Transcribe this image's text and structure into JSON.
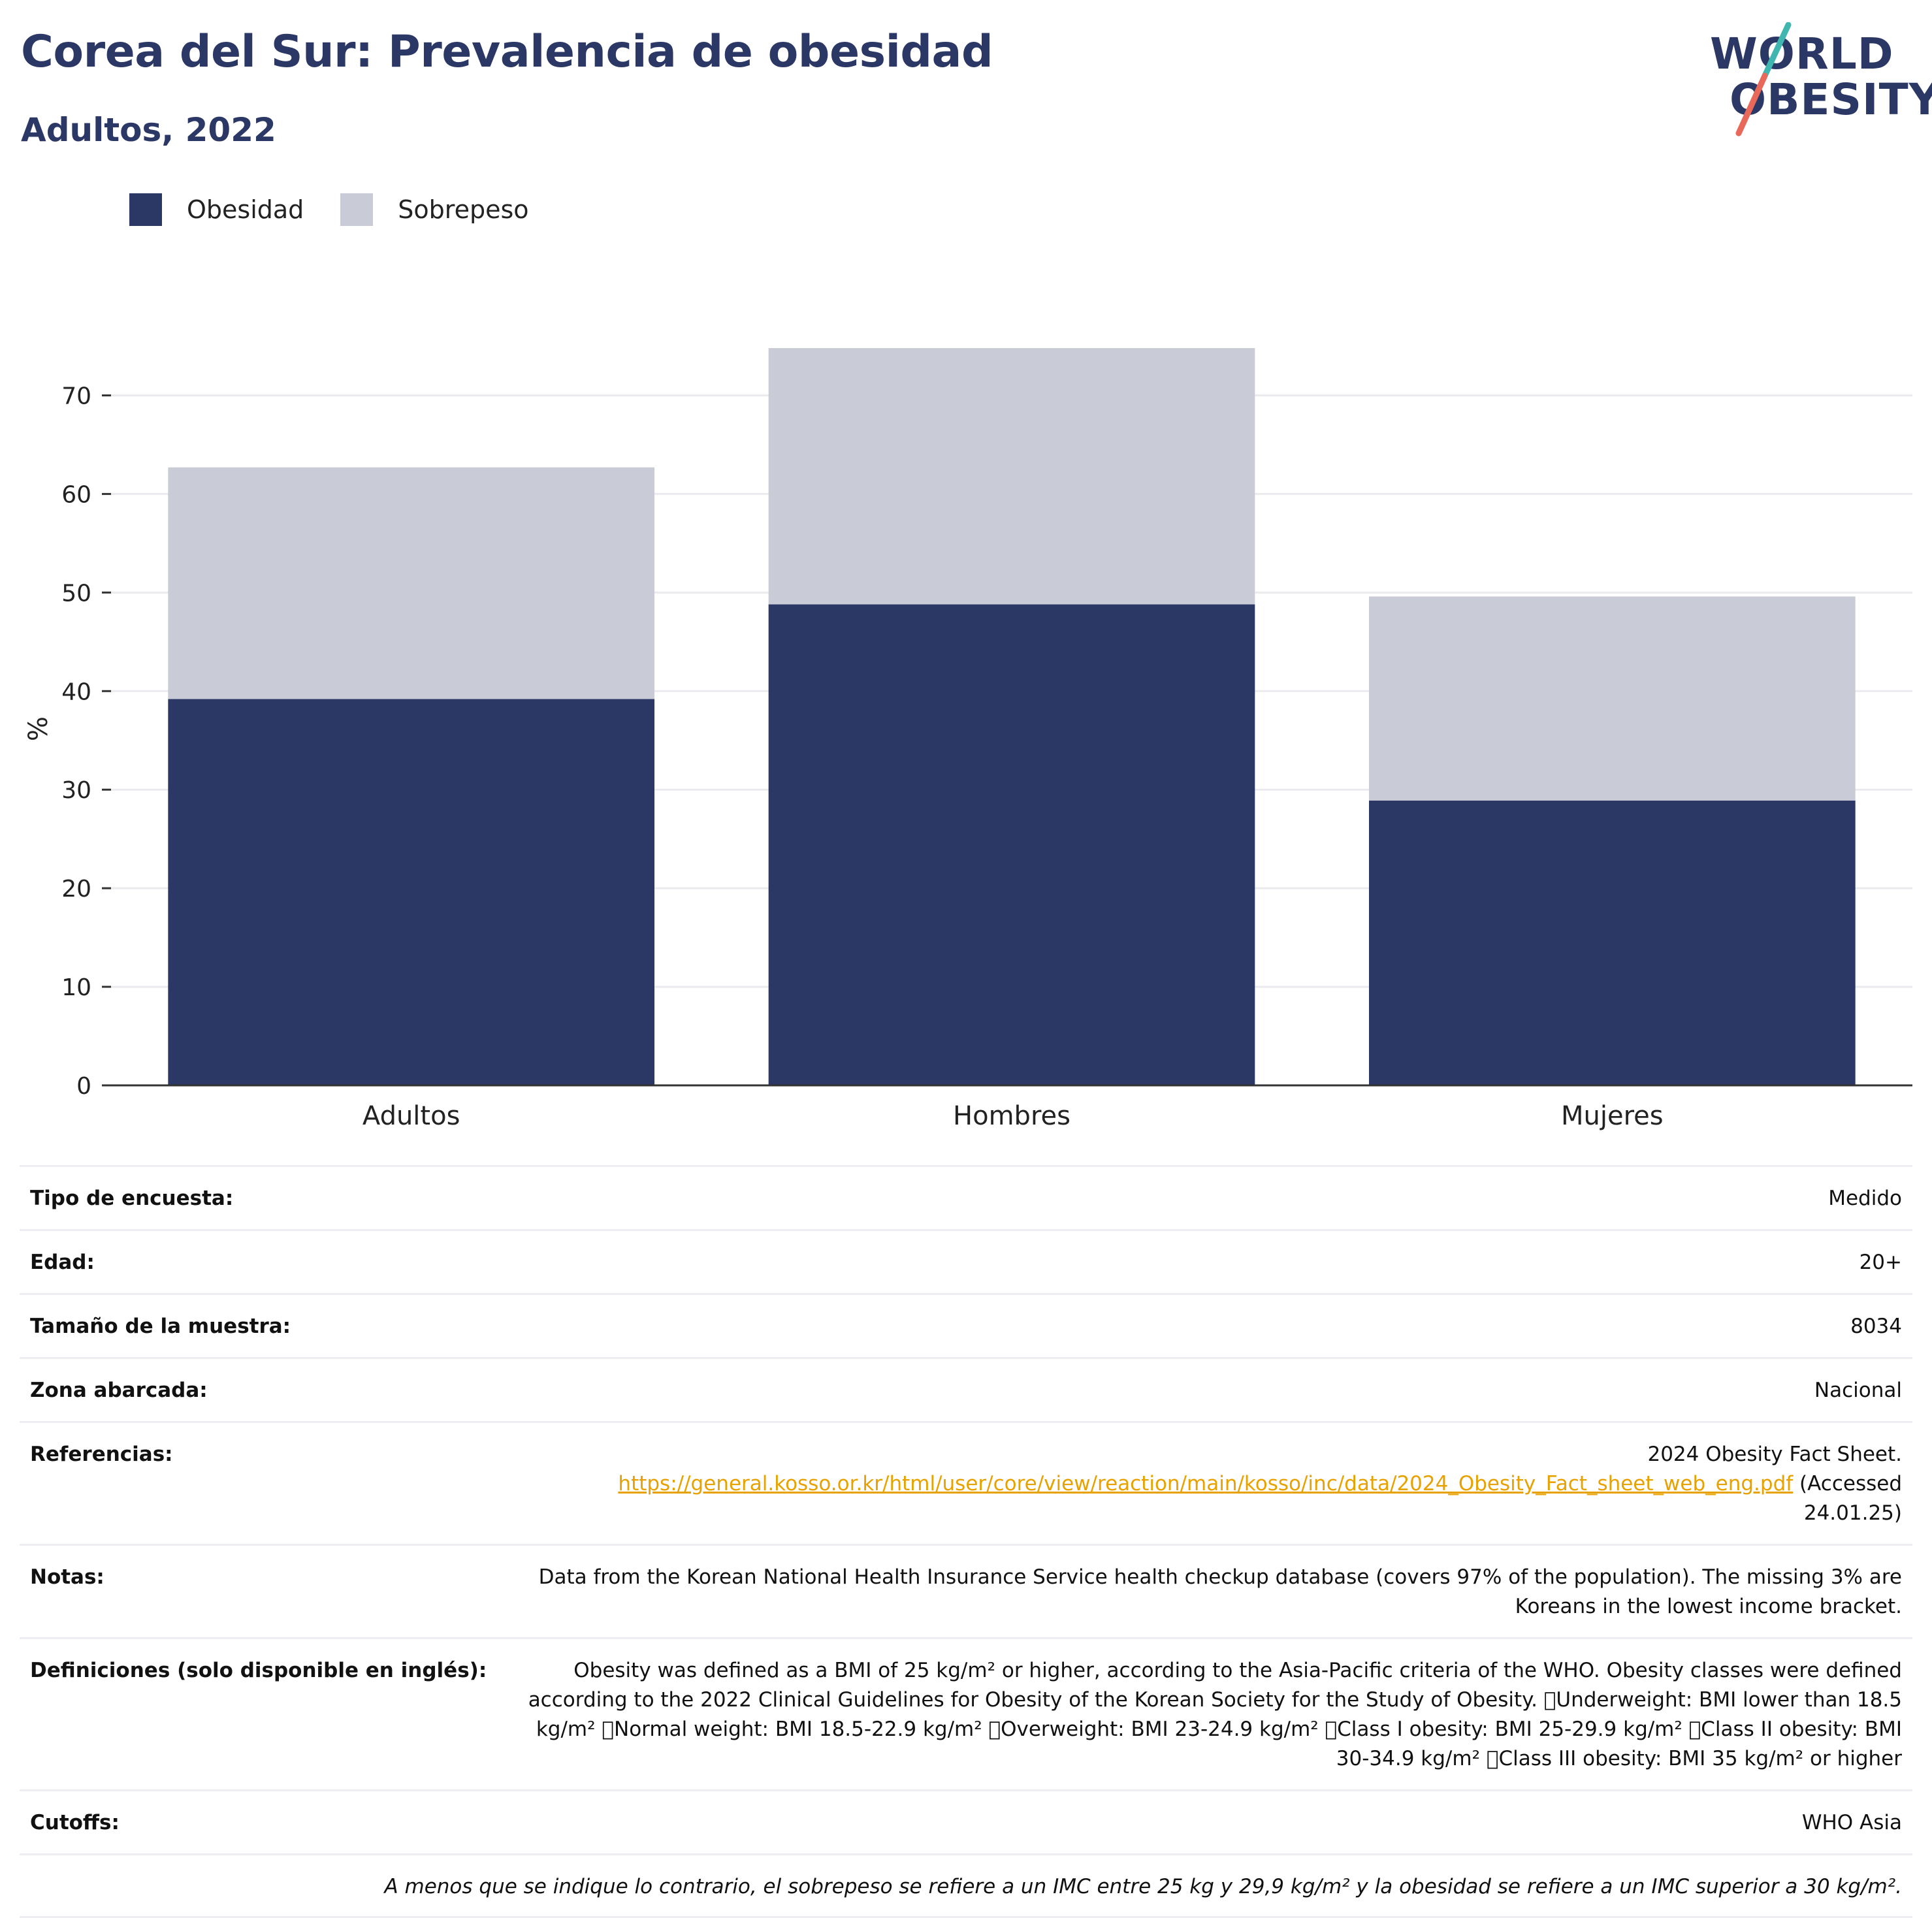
{
  "header": {
    "title": "Corea del Sur: Prevalencia de obesidad",
    "subtitle": "Adultos, 2022"
  },
  "logo": {
    "line1": "WORLD",
    "line2": "OBESITY",
    "colors": {
      "text": "#2b3765",
      "slash_top": "#3fb6b0",
      "slash_bottom": "#e8695a"
    }
  },
  "chart_data": {
    "type": "bar",
    "stacked": true,
    "categories": [
      "Adultos",
      "Hombres",
      "Mujeres"
    ],
    "series": [
      {
        "name": "Obesidad",
        "color": "#2b3765",
        "values": [
          39.2,
          48.8,
          28.9
        ]
      },
      {
        "name": "Sobrepeso",
        "color": "#c9cbd6",
        "values": [
          23.5,
          26.0,
          20.7
        ]
      }
    ],
    "ylabel": "%",
    "ylim": [
      0,
      75
    ],
    "yticks": [
      0,
      10,
      20,
      30,
      40,
      50,
      60,
      70
    ],
    "grid": true,
    "legend": "top-left"
  },
  "info": {
    "rows": [
      {
        "key": "Tipo de encuesta:",
        "value": "Medido"
      },
      {
        "key": "Edad:",
        "value": "20+"
      },
      {
        "key": "Tamaño de la muestra:",
        "value": "8034"
      },
      {
        "key": "Zona abarcada:",
        "value": "Nacional"
      }
    ],
    "references": {
      "key": "Referencias:",
      "text_before": "2024 Obesity Fact Sheet.",
      "link": "https://general.kosso.or.kr/html/user/core/view/reaction/main/kosso/inc/data/2024_Obesity_Fact_sheet_web_eng.pdf",
      "text_after": "(Accessed 24.01.25)"
    },
    "notes": {
      "key": "Notas:",
      "value": "Data from the Korean National Health Insurance Service health checkup database (covers 97% of the population). The missing 3% are Koreans in the lowest income bracket."
    },
    "definitions": {
      "key": "Definiciones (solo disponible en inglés):",
      "value": "Obesity was defined as a BMI of 25 kg/m² or higher, according to the Asia-Pacific criteria of the WHO. Obesity classes were defined according to the 2022 Clinical Guidelines for Obesity of the Korean Society for the Study of Obesity. \u0000Underweight: BMI lower than 18.5 kg/m² \u0000Normal weight: BMI 18.5-22.9 kg/m² \u0000Overweight: BMI 23-24.9 kg/m² \u0000Class I obesity: BMI 25-29.9 kg/m² \u0000Class II obesity: BMI 30-34.9 kg/m² \u0000Class III obesity: BMI 35 kg/m² or higher"
    },
    "cutoffs": {
      "key": "Cutoffs:",
      "value": "WHO Asia"
    },
    "footnote": "A menos que se indique lo contrario, el sobrepeso se refiere a un IMC entre 25 kg y 29,9 kg/m² y la obesidad se refiere a un IMC superior a 30 kg/m²."
  }
}
